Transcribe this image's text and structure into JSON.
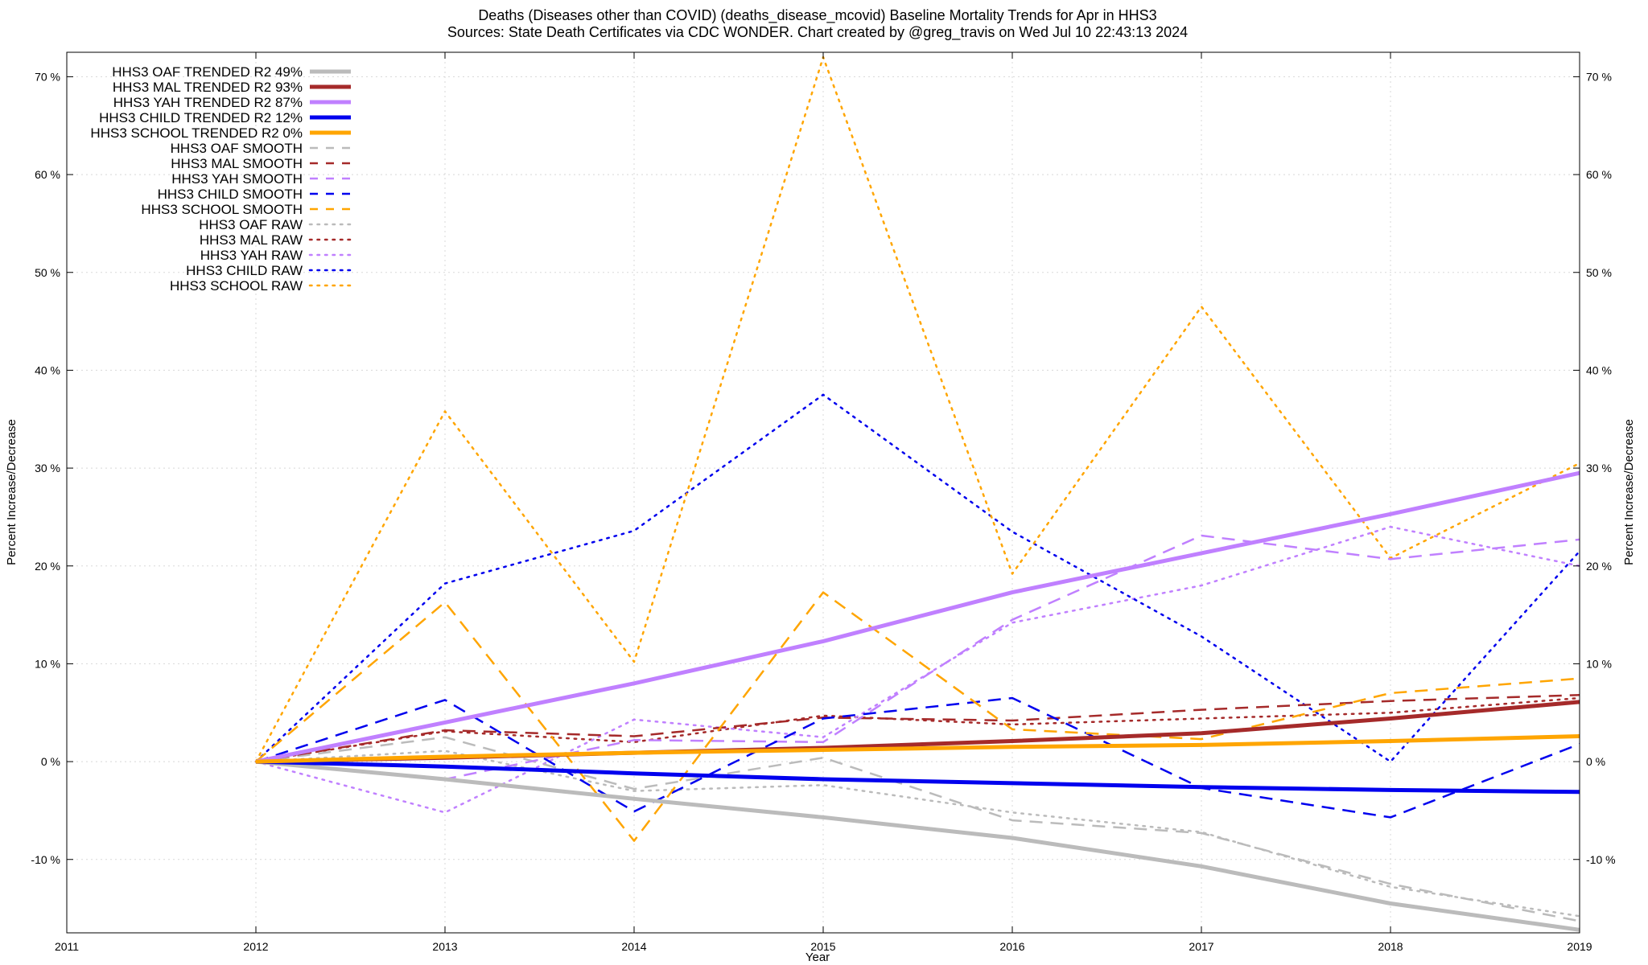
{
  "title_line1": "Deaths (Diseases other than COVID) (deaths_disease_mcovid)  Baseline Mortality Trends for Apr in HHS3",
  "title_line2": "Sources: State Death Certificates via CDC WONDER.                Chart created by @greg_travis on Wed Jul 10 22:43:13 2024",
  "chart_data": {
    "type": "line",
    "title": "Deaths (Diseases other than COVID) (deaths_disease_mcovid)  Baseline Mortality Trends for Apr in HHS3",
    "xlabel": "Year",
    "ylabel": "Percent Increase/Decrease",
    "y2label": "Percent Increase/Decrease",
    "xlim": [
      2011,
      2019
    ],
    "ylim": [
      -17.5,
      72.5
    ],
    "x_ticks": [
      2011,
      2012,
      2013,
      2014,
      2015,
      2016,
      2017,
      2018,
      2019
    ],
    "x_tick_labels": [
      "2011",
      "2012",
      "2013",
      "2014",
      "2015",
      "2016",
      "2017",
      "2018",
      "2019"
    ],
    "y_ticks": [
      -10,
      0,
      10,
      20,
      30,
      40,
      50,
      60,
      70
    ],
    "y_tick_labels": [
      "-10 %",
      "0 %",
      "10 %",
      "20 %",
      "30 %",
      "40 %",
      "50 %",
      "60 %",
      "70 %"
    ],
    "grid": true,
    "legend_position": "top-left",
    "x": [
      2012,
      2013,
      2014,
      2015,
      2016,
      2017,
      2018,
      2019
    ],
    "series": [
      {
        "name": "HHS3 OAF TRENDED R2  49%",
        "color": "#bbbbbb",
        "style": "solid",
        "width": 5,
        "values": [
          0,
          -1.8,
          -3.8,
          -5.7,
          -7.8,
          -10.7,
          -14.5,
          -17.2
        ]
      },
      {
        "name": "HHS3 MAL TRENDED R2  93%",
        "color": "#a52a2a",
        "style": "solid",
        "width": 5,
        "values": [
          0,
          0.4,
          0.9,
          1.4,
          2.1,
          2.9,
          4.4,
          6.1
        ]
      },
      {
        "name": "HHS3 YAH TRENDED R2  87%",
        "color": "#c080ff",
        "style": "solid",
        "width": 5,
        "values": [
          0,
          4.0,
          8.0,
          12.3,
          17.3,
          21.3,
          25.3,
          29.5
        ]
      },
      {
        "name": "HHS3 CHILD TRENDED R2  12%",
        "color": "#0000ee",
        "style": "solid",
        "width": 5,
        "values": [
          0,
          -0.5,
          -1.2,
          -1.8,
          -2.2,
          -2.6,
          -2.9,
          -3.1
        ]
      },
      {
        "name": "HHS3 SCHOOL TRENDED R2   0%",
        "color": "#ffa500",
        "style": "solid",
        "width": 5,
        "values": [
          0,
          0.5,
          0.9,
          1.2,
          1.5,
          1.7,
          2.1,
          2.6
        ]
      },
      {
        "name": "HHS3 OAF SMOOTH",
        "color": "#bbbbbb",
        "style": "dashed",
        "width": 2.5,
        "values": [
          0,
          2.5,
          -2.8,
          0.4,
          -6.0,
          -7.3,
          -12.5,
          -16.3
        ]
      },
      {
        "name": "HHS3 MAL SMOOTH",
        "color": "#a52a2a",
        "style": "dashed",
        "width": 2.5,
        "values": [
          0,
          3.2,
          2.6,
          4.5,
          4.2,
          5.3,
          6.2,
          6.8
        ]
      },
      {
        "name": "HHS3 YAH SMOOTH",
        "color": "#c080ff",
        "style": "dashed",
        "width": 2.5,
        "values": [
          0,
          -1.8,
          2.2,
          2.0,
          14.5,
          23.1,
          20.7,
          22.7
        ]
      },
      {
        "name": "HHS3 CHILD SMOOTH",
        "color": "#0000ee",
        "style": "dashed",
        "width": 2.5,
        "values": [
          0,
          6.3,
          -5.1,
          4.4,
          6.5,
          -2.7,
          -5.7,
          1.8
        ]
      },
      {
        "name": "HHS3 SCHOOL SMOOTH",
        "color": "#ffa500",
        "style": "dashed",
        "width": 2.5,
        "values": [
          0,
          16.3,
          -8.1,
          17.3,
          3.3,
          2.3,
          7.0,
          8.5
        ]
      },
      {
        "name": "HHS3 OAF RAW",
        "color": "#bbbbbb",
        "style": "dotted",
        "width": 2.5,
        "values": [
          0,
          1.1,
          -3.0,
          -2.4,
          -5.2,
          -7.2,
          -12.8,
          -15.8
        ]
      },
      {
        "name": "HHS3 MAL RAW",
        "color": "#a52a2a",
        "style": "dotted",
        "width": 2.5,
        "values": [
          0,
          3.1,
          2.0,
          4.7,
          3.8,
          4.4,
          5.0,
          6.5
        ]
      },
      {
        "name": "HHS3 YAH RAW",
        "color": "#c080ff",
        "style": "dotted",
        "width": 2.5,
        "values": [
          0,
          -5.2,
          4.3,
          2.5,
          14.2,
          18.0,
          24.0,
          20.0
        ]
      },
      {
        "name": "HHS3 CHILD RAW",
        "color": "#0000ee",
        "style": "dotted",
        "width": 2.5,
        "values": [
          0,
          18.2,
          23.6,
          37.5,
          23.5,
          12.8,
          0.0,
          21.5
        ]
      },
      {
        "name": "HHS3 SCHOOL RAW",
        "color": "#ffa500",
        "style": "dotted",
        "width": 2.5,
        "values": [
          0,
          35.8,
          10.2,
          72.0,
          19.2,
          46.5,
          20.8,
          30.5
        ]
      }
    ]
  }
}
